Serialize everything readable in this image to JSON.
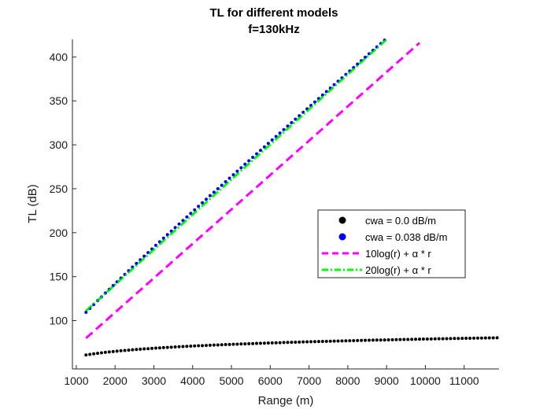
{
  "chart_data": {
    "type": "line",
    "title": "TL for different models",
    "subtitle": "f=130kHz",
    "xlabel": "Range (m)",
    "ylabel": "TL (dB)",
    "xlim": [
      900,
      11900
    ],
    "ylim": [
      45,
      420
    ],
    "xticks": [
      1000,
      2000,
      3000,
      4000,
      5000,
      6000,
      7000,
      8000,
      9000,
      10000,
      11000
    ],
    "yticks": [
      100,
      150,
      200,
      250,
      300,
      350,
      400
    ],
    "grid": false,
    "legend_position": "center-right",
    "series": [
      {
        "name": "cwa = 0.0 dB/m",
        "style": "dots",
        "color": "#000000",
        "x_start": 1250,
        "x_end": 11900,
        "x_step": 100,
        "formula": "20log10(r) - 1"
      },
      {
        "name": "cwa = 0.038 dB/m",
        "style": "dots",
        "color": "#0000ff",
        "x_start": 1250,
        "x_end": 9000,
        "x_step": 100,
        "formula": "20log10(r) + 0.038*r"
      },
      {
        "name": "10log(r) + α * r",
        "style": "dashed",
        "color": "#ff00ff",
        "x": [
          1250,
          9850
        ],
        "y": [
          80,
          416
        ]
      },
      {
        "name": "20log(r) + α * r",
        "style": "dash-dot",
        "color": "#00ff00",
        "x": [
          1250,
          9000
        ],
        "y": [
          111,
          420
        ]
      }
    ]
  }
}
